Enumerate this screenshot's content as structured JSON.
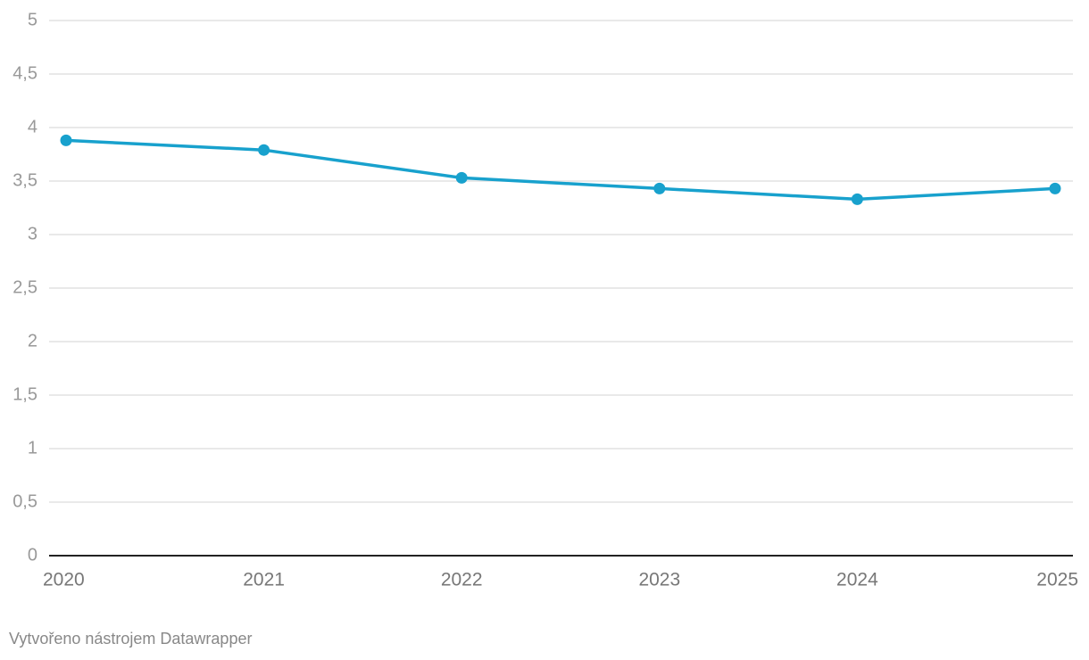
{
  "chart_data": {
    "type": "line",
    "categories": [
      "2020",
      "2021",
      "2022",
      "2023",
      "2024",
      "2025"
    ],
    "series": [
      {
        "color": "#18a1cd",
        "values": [
          3.88,
          3.79,
          3.53,
          3.43,
          3.33,
          3.43
        ]
      }
    ],
    "ylim": [
      0,
      5
    ],
    "yticks": [
      0,
      {
        "value": 0.5,
        "label": "0,5"
      },
      1,
      {
        "value": 1.5,
        "label": "1,5"
      },
      2,
      {
        "value": 2.5,
        "label": "2,5"
      },
      3,
      {
        "value": 3.5,
        "label": "3,5"
      },
      4,
      {
        "value": 4.5,
        "label": "4,5"
      },
      5
    ],
    "grid": true,
    "footer": "Vytvořeno nástrojem Datawrapper"
  }
}
